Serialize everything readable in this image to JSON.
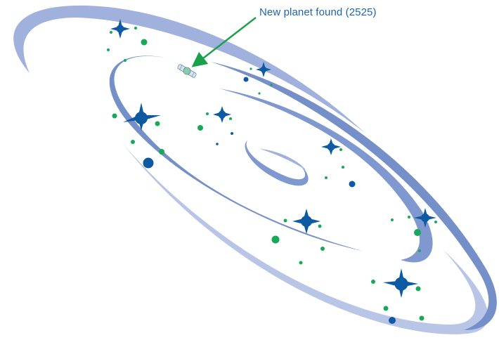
{
  "annotation": {
    "label": "New planet found (2525)",
    "arrow_color": "#1aa04a",
    "text_color": "#1e64b4"
  },
  "colors": {
    "arm_dark": "#7590c9",
    "arm_light": "#b9c5e6",
    "star": "#0d5aa3",
    "dot_green": "#18a859",
    "dot_blue": "#0d5aa3",
    "planet": "#8ec9b0"
  }
}
